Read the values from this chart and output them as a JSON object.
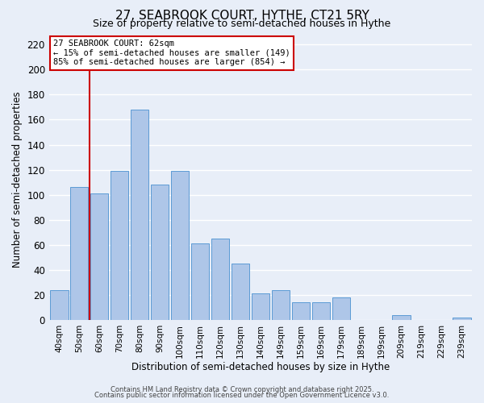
{
  "title": "27, SEABROOK COURT, HYTHE, CT21 5RY",
  "subtitle": "Size of property relative to semi-detached houses in Hythe",
  "xlabel": "Distribution of semi-detached houses by size in Hythe",
  "ylabel": "Number of semi-detached properties",
  "bar_labels": [
    "40sqm",
    "50sqm",
    "60sqm",
    "70sqm",
    "80sqm",
    "90sqm",
    "100sqm",
    "110sqm",
    "120sqm",
    "130sqm",
    "140sqm",
    "149sqm",
    "159sqm",
    "169sqm",
    "179sqm",
    "189sqm",
    "199sqm",
    "209sqm",
    "219sqm",
    "229sqm",
    "239sqm"
  ],
  "bar_values": [
    24,
    106,
    101,
    119,
    168,
    108,
    119,
    61,
    65,
    45,
    21,
    24,
    14,
    14,
    18,
    0,
    0,
    4,
    0,
    0,
    2
  ],
  "bar_color": "#aec6e8",
  "bar_edge_color": "#5b9bd5",
  "ylim": [
    0,
    225
  ],
  "yticks": [
    0,
    20,
    40,
    60,
    80,
    100,
    120,
    140,
    160,
    180,
    200,
    220
  ],
  "vline_x_index": 1.5,
  "vline_color": "#cc0000",
  "annotation_title": "27 SEABROOK COURT: 62sqm",
  "annotation_line1": "← 15% of semi-detached houses are smaller (149)",
  "annotation_line2": "85% of semi-detached houses are larger (854) →",
  "annotation_box_color": "#ffffff",
  "annotation_box_edge": "#cc0000",
  "footer1": "Contains HM Land Registry data © Crown copyright and database right 2025.",
  "footer2": "Contains public sector information licensed under the Open Government Licence v3.0.",
  "background_color": "#e8eef8",
  "grid_color": "#ffffff",
  "title_fontsize": 11,
  "subtitle_fontsize": 9
}
